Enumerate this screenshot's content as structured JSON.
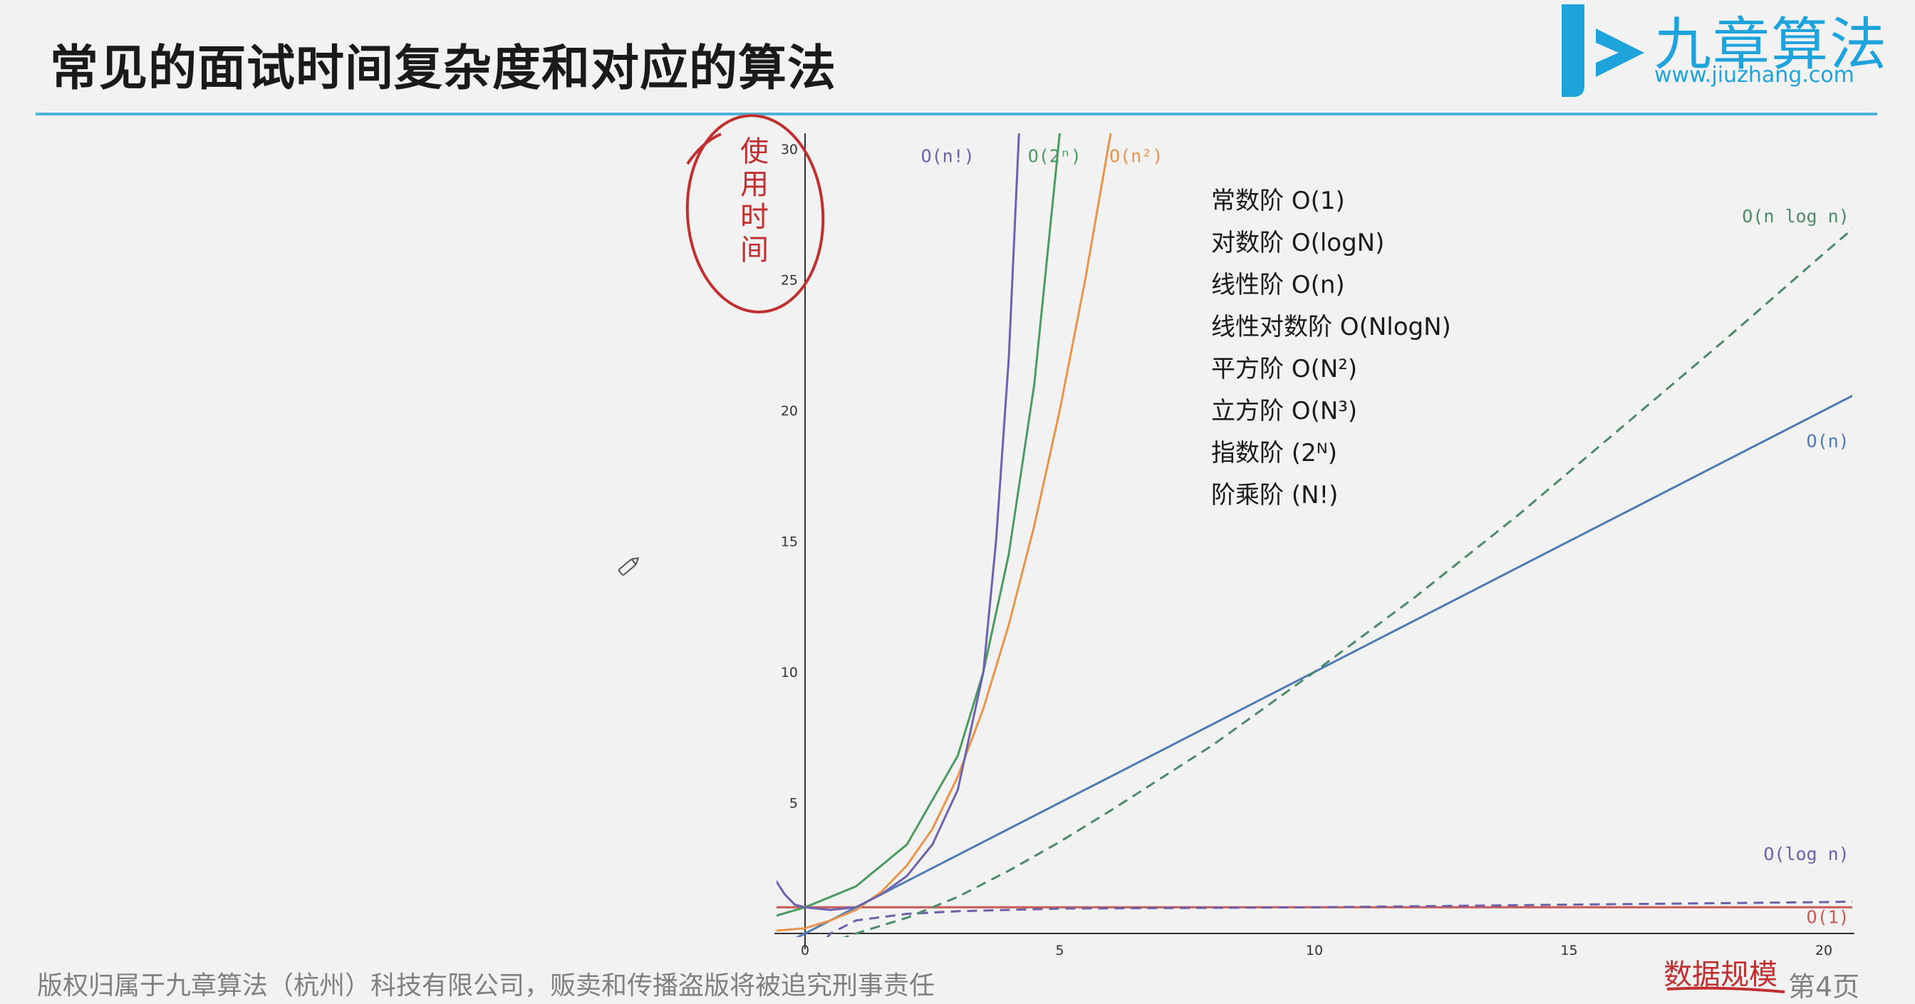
{
  "slide": {
    "title": "常见的面试时间复杂度和对应的算法",
    "footer": "版权归属于九章算法（杭州）科技有限公司，贩卖和传播盗版将被追究刑事责任",
    "page_number": "第4页",
    "rule_color": "#4fb3d9"
  },
  "logo": {
    "name": "九章算法",
    "url": "www.jiuzhang.com",
    "color": "#1fa3dd"
  },
  "legend": [
    "常数阶 O(1)",
    "对数阶 O(logN)",
    "线性阶 O(n)",
    "线性对数阶 O(NlogN)",
    "平方阶 O(N²)",
    "立方阶 O(N³)",
    "指数阶 (2ᴺ)",
    "阶乘阶 (N!)"
  ],
  "annotations": {
    "y_axis_handwritten": "使用时间",
    "x_axis_handwritten": "数据规模",
    "color": "#c03030"
  },
  "chart_data": {
    "type": "line",
    "xlim": [
      -0.6,
      20.6
    ],
    "ylim": [
      -0.6,
      30.6
    ],
    "x_ticks": [
      "0",
      "5",
      "10",
      "15",
      "20"
    ],
    "y_ticks": [
      "5",
      "10",
      "15",
      "20",
      "25",
      "30"
    ],
    "grid": false,
    "series": [
      {
        "name": "O(1)",
        "color": "#c95a58",
        "dash": false,
        "label_x": 20.5,
        "label_y": 0.4,
        "points": [
          [
            -0.6,
            1
          ],
          [
            20.6,
            1
          ]
        ]
      },
      {
        "name": "O(log n)",
        "color": "#6d60a8",
        "dash": true,
        "label_x": 20.5,
        "label_y": 2.8,
        "points": [
          [
            0.1,
            -1.3
          ],
          [
            0.25,
            -0.6
          ],
          [
            0.5,
            0
          ],
          [
            1,
            0.5
          ],
          [
            2,
            0.75
          ],
          [
            3,
            0.85
          ],
          [
            5,
            0.95
          ],
          [
            10,
            1
          ],
          [
            15,
            1.1
          ],
          [
            20,
            1.2
          ],
          [
            20.6,
            1.22
          ]
        ]
      },
      {
        "name": "O(n)",
        "color": "#4e7bb5",
        "dash": false,
        "label_x": 20.5,
        "label_y": 18.6,
        "points": [
          [
            -0.6,
            -0.6
          ],
          [
            20.6,
            20.6
          ]
        ]
      },
      {
        "name": "O(n log n)",
        "color": "#4d8a6a",
        "dash": true,
        "label_x": 20.5,
        "label_y": 27.2,
        "points": [
          [
            0.1,
            -0.8
          ],
          [
            0.5,
            -0.35
          ],
          [
            1,
            0
          ],
          [
            2,
            0.6
          ],
          [
            3,
            1.4
          ],
          [
            4,
            2.4
          ],
          [
            5,
            3.5
          ],
          [
            6,
            4.7
          ],
          [
            8,
            7.2
          ],
          [
            10,
            10
          ],
          [
            12,
            12.9
          ],
          [
            14,
            16
          ],
          [
            16,
            19.3
          ],
          [
            18,
            22.6
          ],
          [
            20,
            26
          ],
          [
            20.6,
            27
          ]
        ]
      },
      {
        "name": "O(n²)",
        "color": "#e8944a",
        "dash": false,
        "label_x": 6.5,
        "label_y": 29.5,
        "points": [
          [
            -0.6,
            0.1
          ],
          [
            0,
            0.2
          ],
          [
            0.5,
            0.5
          ],
          [
            1,
            0.9
          ],
          [
            1.5,
            1.6
          ],
          [
            2,
            2.6
          ],
          [
            2.5,
            4
          ],
          [
            3,
            6
          ],
          [
            3.5,
            8.6
          ],
          [
            4,
            11.8
          ],
          [
            4.5,
            15.6
          ],
          [
            5,
            20
          ],
          [
            5.5,
            25
          ],
          [
            6,
            30.6
          ]
        ]
      },
      {
        "name": "O(2ⁿ)",
        "color": "#4c9a62",
        "dash": false,
        "label_x": 4.9,
        "label_y": 29.5,
        "points": [
          [
            -0.6,
            0.66
          ],
          [
            0,
            1
          ],
          [
            1,
            1.8
          ],
          [
            2,
            3.4
          ],
          [
            3,
            6.8
          ],
          [
            3.5,
            10
          ],
          [
            4,
            14.5
          ],
          [
            4.5,
            21
          ],
          [
            5,
            30.6
          ]
        ]
      },
      {
        "name": "O(n!)",
        "color": "#6b63b0",
        "dash": false,
        "label_x": 2.8,
        "label_y": 29.5,
        "points": [
          [
            -0.6,
            2.1
          ],
          [
            -0.4,
            1.5
          ],
          [
            -0.2,
            1.1
          ],
          [
            0,
            1
          ],
          [
            0.5,
            0.9
          ],
          [
            1,
            1
          ],
          [
            1.5,
            1.5
          ],
          [
            2,
            2.2
          ],
          [
            2.5,
            3.4
          ],
          [
            3,
            5.5
          ],
          [
            3.5,
            10
          ],
          [
            3.75,
            15
          ],
          [
            4,
            22
          ],
          [
            4.2,
            30.6
          ]
        ]
      }
    ]
  }
}
